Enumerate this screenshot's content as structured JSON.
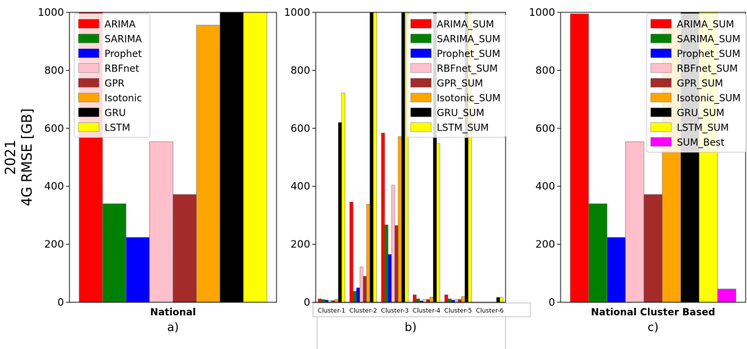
{
  "figure": {
    "ylabel_line1": "2021",
    "ylabel_line2": "4G RMSE [GB]",
    "colors": {
      "ARIMA": "#ff0000",
      "SARIMA": "#008000",
      "Prophet": "#0000ff",
      "RBFnet": "#ffc0cb",
      "GPR": "#a52a2a",
      "Isotonic": "#ffa500",
      "GRU": "#000000",
      "LSTM": "#ffff00",
      "SUM_Best": "#ff00ff"
    }
  },
  "chart_data": [
    {
      "type": "bar",
      "panel_label": "a)",
      "xlabel": "National",
      "ylim": [
        0,
        1000
      ],
      "yticks": [
        0,
        200,
        400,
        600,
        800,
        1000
      ],
      "legend_position": "top-right",
      "series": [
        {
          "name": "ARIMA",
          "color_key": "ARIMA",
          "value": 1000
        },
        {
          "name": "SARIMA",
          "color_key": "SARIMA",
          "value": 340
        },
        {
          "name": "Prophet",
          "color_key": "Prophet",
          "value": 224
        },
        {
          "name": "RBFnet",
          "color_key": "RBFnet",
          "value": 554
        },
        {
          "name": "GPR",
          "color_key": "GPR",
          "value": 372
        },
        {
          "name": "Isotonic",
          "color_key": "Isotonic",
          "value": 956
        },
        {
          "name": "GRU",
          "color_key": "GRU",
          "value": 1000
        },
        {
          "name": "LSTM",
          "color_key": "LSTM",
          "value": 1000
        }
      ]
    },
    {
      "type": "bar",
      "panel_label": "b)",
      "ylim": [
        0,
        1000
      ],
      "yticks": [
        0,
        200,
        400,
        600,
        800,
        1000
      ],
      "legend_position": "top-right",
      "categories": [
        "Cluster-1",
        "Cluster-2",
        "Cluster-3",
        "Cluster-4",
        "Cluster-5",
        "Cluster-6"
      ],
      "series": [
        {
          "name": "ARIMA_SUM",
          "color_key": "ARIMA",
          "values": [
            12,
            346,
            584,
            26,
            26,
            0
          ]
        },
        {
          "name": "SARIMA_SUM",
          "color_key": "SARIMA",
          "values": [
            10,
            38,
            267,
            12,
            12,
            0
          ]
        },
        {
          "name": "Prophet_SUM",
          "color_key": "Prophet",
          "values": [
            8,
            50,
            165,
            5,
            8,
            0
          ]
        },
        {
          "name": "RBFnet_SUM",
          "color_key": "RBFnet",
          "values": [
            6,
            122,
            404,
            10,
            10,
            0
          ]
        },
        {
          "name": "GPR_SUM",
          "color_key": "GPR",
          "values": [
            6,
            90,
            265,
            10,
            10,
            0
          ]
        },
        {
          "name": "Isotonic_SUM",
          "color_key": "Isotonic",
          "values": [
            10,
            338,
            572,
            18,
            20,
            0
          ]
        },
        {
          "name": "GRU_SUM",
          "color_key": "GRU",
          "values": [
            620,
            1000,
            1000,
            1000,
            1000,
            17
          ]
        },
        {
          "name": "LSTM_SUM",
          "color_key": "LSTM",
          "values": [
            722,
            1000,
            1000,
            548,
            1000,
            17
          ]
        }
      ]
    },
    {
      "type": "bar",
      "panel_label": "c)",
      "xlabel": "National Cluster Based",
      "ylim": [
        0,
        1000
      ],
      "yticks": [
        0,
        200,
        400,
        600,
        800,
        1000
      ],
      "legend_position": "top-right",
      "series": [
        {
          "name": "ARIMA_SUM",
          "color_key": "ARIMA",
          "value": 995
        },
        {
          "name": "SARIMA_SUM",
          "color_key": "SARIMA",
          "value": 340
        },
        {
          "name": "Prophet_SUM",
          "color_key": "Prophet",
          "value": 224
        },
        {
          "name": "RBFnet_SUM",
          "color_key": "RBFnet",
          "value": 554
        },
        {
          "name": "GPR_SUM",
          "color_key": "GPR",
          "value": 372
        },
        {
          "name": "Isotonic_SUM",
          "color_key": "Isotonic",
          "value": 956
        },
        {
          "name": "GRU_SUM",
          "color_key": "GRU",
          "value": 1000
        },
        {
          "name": "LSTM_SUM",
          "color_key": "LSTM",
          "value": 1000
        },
        {
          "name": "SUM_Best",
          "color_key": "SUM_Best",
          "value": 46
        }
      ]
    }
  ]
}
